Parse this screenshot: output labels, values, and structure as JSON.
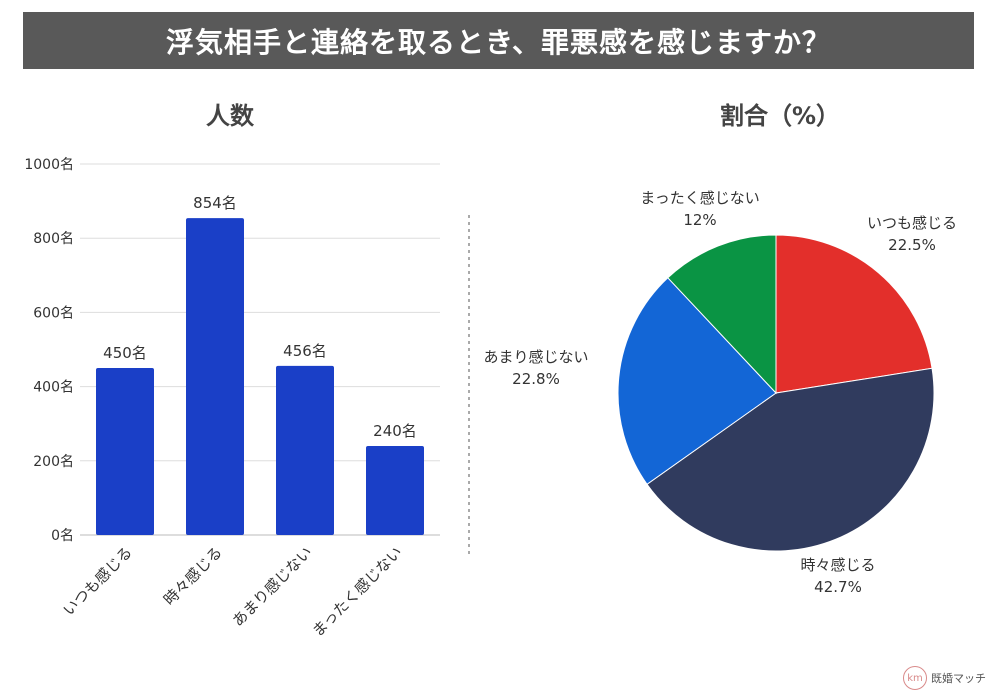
{
  "title": "浮気相手と連絡を取るとき、罪悪感を感じますか？",
  "colors": {
    "title_bg": "#595959",
    "bar": "#1a3fc7",
    "pie": [
      "#e32f2b",
      "#303b5e",
      "#1366d6",
      "#0a9444"
    ]
  },
  "chart_data": [
    {
      "type": "bar",
      "title": "人数",
      "categories": [
        "いつも感じる",
        "時々感じる",
        "あまり感じない",
        "まったく感じない"
      ],
      "values": [
        450,
        854,
        456,
        240
      ],
      "data_labels": [
        "450名",
        "854名",
        "456名",
        "240名"
      ],
      "ylim": [
        0,
        1000
      ],
      "yticks": [
        0,
        200,
        400,
        600,
        800,
        1000
      ],
      "ytick_labels": [
        "0名",
        "200名",
        "400名",
        "600名",
        "800名",
        "1000名"
      ],
      "grid": true
    },
    {
      "type": "pie",
      "title": "割合（%）",
      "categories": [
        "いつも感じる",
        "時々感じる",
        "あまり感じない",
        "まったく感じない"
      ],
      "values": [
        22.5,
        42.7,
        22.8,
        12
      ],
      "value_labels": [
        "22.5%",
        "42.7%",
        "22.8%",
        "12%"
      ]
    }
  ],
  "logo": {
    "text": "既婚マッチ",
    "mark": "km"
  }
}
